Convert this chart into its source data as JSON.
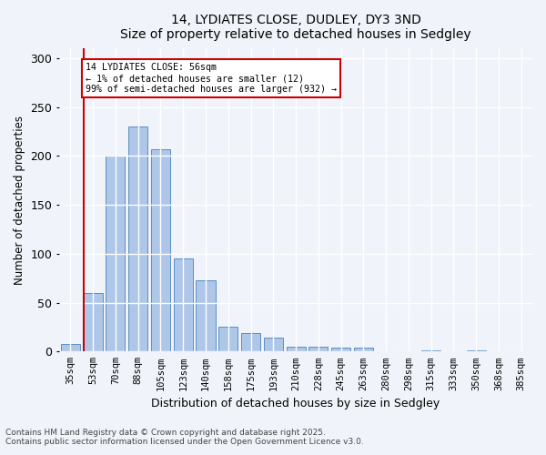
{
  "title1": "14, LYDIATES CLOSE, DUDLEY, DY3 3ND",
  "title2": "Size of property relative to detached houses in Sedgley",
  "xlabel": "Distribution of detached houses by size in Sedgley",
  "ylabel": "Number of detached properties",
  "categories": [
    "35sqm",
    "53sqm",
    "70sqm",
    "88sqm",
    "105sqm",
    "123sqm",
    "140sqm",
    "158sqm",
    "175sqm",
    "193sqm",
    "210sqm",
    "228sqm",
    "245sqm",
    "263sqm",
    "280sqm",
    "298sqm",
    "315sqm",
    "333sqm",
    "350sqm",
    "368sqm",
    "385sqm"
  ],
  "values": [
    8,
    60,
    200,
    230,
    207,
    95,
    73,
    25,
    19,
    14,
    5,
    5,
    4,
    4,
    0,
    0,
    1,
    0,
    1,
    0,
    0
  ],
  "bar_color": "#aec6e8",
  "bar_edge_color": "#5a8fc2",
  "highlight_index": 1,
  "highlight_line_color": "#cc0000",
  "annotation_box_text": "14 LYDIATES CLOSE: 56sqm\n← 1% of detached houses are smaller (12)\n99% of semi-detached houses are larger (932) →",
  "annotation_box_color": "#cc0000",
  "ylim": [
    0,
    310
  ],
  "yticks": [
    0,
    50,
    100,
    150,
    200,
    250,
    300
  ],
  "footer1": "Contains HM Land Registry data © Crown copyright and database right 2025.",
  "footer2": "Contains public sector information licensed under the Open Government Licence v3.0.",
  "bg_color": "#f0f4fa",
  "plot_bg_color": "#f0f4fa"
}
